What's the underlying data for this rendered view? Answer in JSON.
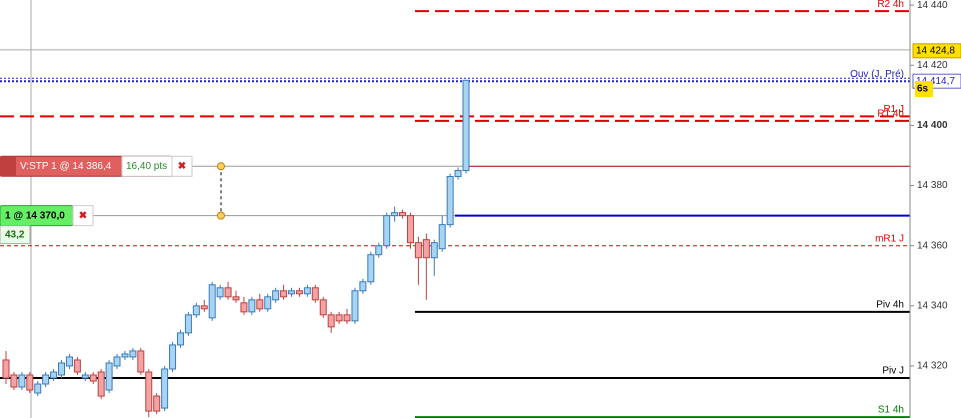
{
  "chart_data": {
    "type": "candlestick",
    "categories": [
      null,
      null,
      null,
      null,
      null,
      null,
      null,
      null,
      null,
      null,
      null,
      null,
      null,
      null,
      null,
      null,
      null,
      null,
      null,
      null,
      null,
      null,
      null,
      null,
      null,
      null,
      null,
      null,
      null,
      null,
      null,
      null,
      null,
      null,
      null,
      null,
      null,
      null,
      null,
      null,
      null,
      null,
      null,
      null,
      null,
      null,
      null,
      null,
      null,
      null,
      null,
      null,
      null,
      null,
      null,
      null,
      null,
      null,
      null
    ],
    "open": [
      14322,
      14317,
      14313,
      14317,
      14311,
      14314,
      14316,
      14317,
      14320,
      14322,
      14316,
      14317,
      14318,
      14312,
      14320,
      14323,
      14323,
      14325,
      14318,
      14310,
      14306,
      14319,
      14327,
      14331,
      14337,
      14340,
      14336,
      14343,
      14346,
      14343,
      14341,
      14338,
      14342,
      14339,
      14342,
      14345,
      14344,
      14345,
      14344,
      14346,
      14342,
      14337,
      14337,
      14337,
      14335,
      14345,
      14348,
      14357,
      14360,
      14370,
      14371,
      14370,
      14361,
      14362,
      14356,
      14359,
      14367,
      14383,
      14385
    ],
    "high": [
      14325,
      14318,
      14318,
      14318,
      14315,
      14318,
      14319,
      14322,
      14324,
      14323,
      14318,
      14318,
      14319,
      14322,
      14324,
      14325,
      14326,
      14326,
      14319,
      14311,
      14320,
      14328,
      14332,
      14338,
      14341,
      14342,
      14348,
      14347,
      14348,
      14345,
      14343,
      14343,
      14344,
      14344,
      14346,
      14347,
      14346,
      14346,
      14347,
      14347,
      14343,
      14338,
      14338,
      14339,
      14346,
      14349,
      14358,
      14361,
      14371,
      14373,
      14372,
      14371,
      14363,
      14364,
      14362,
      14370,
      14384,
      14386,
      14415
    ],
    "low": [
      14314,
      14312,
      14312,
      14311,
      14310,
      14313,
      14315,
      14316,
      14319,
      14317,
      14315,
      14314,
      14309,
      14311,
      14319,
      14322,
      14322,
      14317,
      14303,
      14304,
      14305,
      14318,
      14326,
      14330,
      14336,
      14338,
      14335,
      14342,
      14342,
      14341,
      14337,
      14337,
      14338,
      14338,
      14341,
      14342,
      14343,
      14343,
      14343,
      14341,
      14336,
      14331,
      14334,
      14334,
      14334,
      14344,
      14347,
      14356,
      14359,
      14368,
      14369,
      14359,
      14347,
      14342,
      14350,
      14358,
      14366,
      14382,
      14384
    ],
    "close": [
      14316,
      14313,
      14317,
      14312,
      14314,
      14317,
      14318,
      14321,
      14323,
      14318,
      14317,
      14315,
      14310,
      14321,
      14323,
      14324,
      14325,
      14318,
      14305,
      14305,
      14319,
      14327,
      14331,
      14337,
      14340,
      14339,
      14347,
      14346,
      14343,
      14342,
      14338,
      14342,
      14339,
      14343,
      14345,
      14343,
      14345,
      14344,
      14346,
      14342,
      14337,
      14333,
      14335,
      14335,
      14345,
      14348,
      14357,
      14360,
      14370,
      14371,
      14370,
      14361,
      14356,
      14356,
      14361,
      14367,
      14383,
      14385,
      14415
    ],
    "up_color": "#a8d4f4",
    "down_color": "#f2a4a4",
    "ylim": [
      14302.7,
      14441.7
    ],
    "yticks": [
      {
        "value": 14440,
        "label": "14 440"
      },
      {
        "value": 14420,
        "label": "14 420"
      },
      {
        "value": 14400,
        "label": "14 400"
      },
      {
        "value": 14380,
        "label": "14 380"
      },
      {
        "value": 14360,
        "label": "14 360"
      },
      {
        "value": 14340,
        "label": "14 340"
      },
      {
        "value": 14320,
        "label": "14 320"
      }
    ],
    "levels": [
      {
        "name": "R2 4h",
        "value": 14438,
        "color": "#e00000",
        "style": "dashed"
      },
      {
        "name": "Ouv (J, Pré)",
        "value": 14414.7,
        "color": "#2020c0",
        "style": "dotted"
      },
      {
        "name": "R1 J",
        "value": 14403,
        "color": "#e00000",
        "style": "dashed"
      },
      {
        "name": "R1 4h",
        "value": 14401.5,
        "color": "#e00000",
        "style": "dashed"
      },
      {
        "name": "mR1 J",
        "value": 14360,
        "color": "#e00000",
        "style": "thin-dashed"
      },
      {
        "name": "Piv 4h",
        "value": 14338,
        "color": "#000000",
        "style": "solid"
      },
      {
        "name": "Piv J",
        "value": 14316,
        "color": "#000000",
        "style": "solid"
      },
      {
        "name": "S1 4h",
        "value": 14303,
        "color": "#008000",
        "style": "solid"
      }
    ],
    "price_tags": [
      {
        "label": "14 424,8",
        "value": 14424.8,
        "color": "#ffe000"
      },
      {
        "label": "14 414,7",
        "value": 14414.7,
        "color": "#ffffff"
      }
    ],
    "timer": "6s",
    "orders": [
      {
        "label": "V:STP 1 @ 14 386,4",
        "value": 14386.4,
        "info": "16,40 pts",
        "color": "#e06060",
        "line_color": "#a00000"
      },
      {
        "label": "1 @ 14 370,0",
        "value": 14370,
        "info": "43,2",
        "color": "#66ee66",
        "line_color": "#0000cc"
      }
    ]
  }
}
